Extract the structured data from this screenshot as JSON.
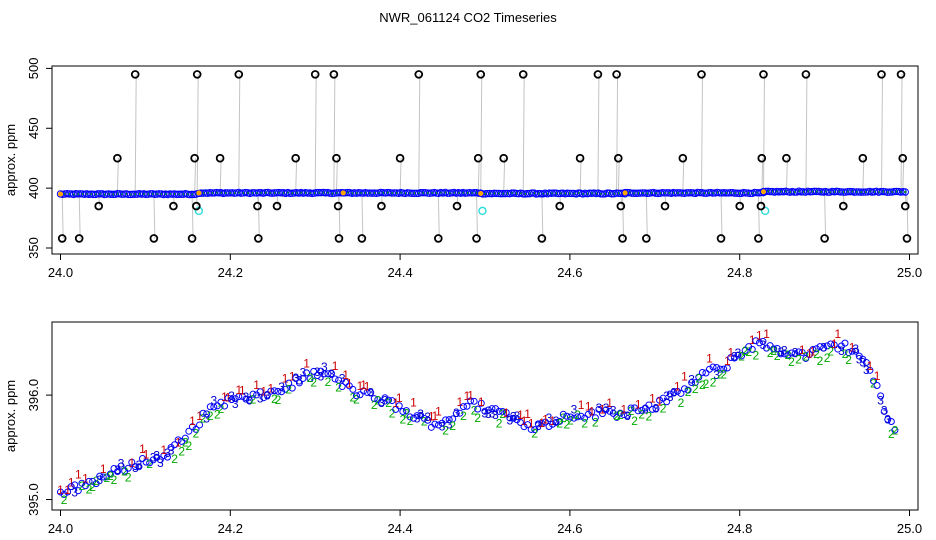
{
  "colors": {
    "spike_line": "#888888",
    "outlier_marker": "#000000",
    "spike_marker": "#000000",
    "baseline_circle": "#0000ff",
    "baseline_center": "#00aa00",
    "segment_start": "#ffa500",
    "cyan_marker": "#33dddd",
    "level_1": "#cc0000",
    "level_2": "#00aa00",
    "level_3": "#0000cc"
  },
  "chart_data": [
    {
      "type": "scatter",
      "title": "NWR_061124  CO2 Timeseries",
      "xlabel": "",
      "ylabel": "approx. ppm",
      "xlim": [
        23.99,
        25.01
      ],
      "ylim": [
        345,
        502
      ],
      "x_ticks": [
        "24.0",
        "24.2",
        "24.4",
        "24.6",
        "24.8",
        "25.0"
      ],
      "y_ticks": [
        "350",
        "400",
        "450",
        "500"
      ],
      "baseline": {
        "segments": [
          {
            "x_start": 24.0,
            "x_end": 24.16,
            "y": 395
          },
          {
            "x_start": 24.163,
            "x_end": 24.333,
            "y": 396
          },
          {
            "x_start": 24.333,
            "x_end": 24.495,
            "y": 396
          },
          {
            "x_start": 24.495,
            "x_end": 24.665,
            "y": 395.5
          },
          {
            "x_start": 24.665,
            "x_end": 24.828,
            "y": 396
          },
          {
            "x_start": 24.828,
            "x_end": 24.995,
            "y": 397
          }
        ]
      },
      "cyan_points": [
        {
          "x": 24.163,
          "y": 381
        },
        {
          "x": 24.497,
          "y": 381
        },
        {
          "x": 24.83,
          "y": 381
        }
      ],
      "spikes": [
        {
          "x": 24.002,
          "y": 358
        },
        {
          "x": 24.022,
          "y": 358
        },
        {
          "x": 24.045,
          "y": 385
        },
        {
          "x": 24.067,
          "y": 425
        },
        {
          "x": 24.088,
          "y": 495
        },
        {
          "x": 24.11,
          "y": 358
        },
        {
          "x": 24.133,
          "y": 385
        },
        {
          "x": 24.155,
          "y": 358
        },
        {
          "x": 24.158,
          "y": 425
        },
        {
          "x": 24.16,
          "y": 385
        },
        {
          "x": 24.161,
          "y": 495
        },
        {
          "x": 24.188,
          "y": 425
        },
        {
          "x": 24.21,
          "y": 495
        },
        {
          "x": 24.232,
          "y": 385
        },
        {
          "x": 24.255,
          "y": 385
        },
        {
          "x": 24.233,
          "y": 358
        },
        {
          "x": 24.277,
          "y": 425
        },
        {
          "x": 24.3,
          "y": 495
        },
        {
          "x": 24.322,
          "y": 495
        },
        {
          "x": 24.325,
          "y": 425
        },
        {
          "x": 24.327,
          "y": 385
        },
        {
          "x": 24.328,
          "y": 358
        },
        {
          "x": 24.355,
          "y": 358
        },
        {
          "x": 24.378,
          "y": 385
        },
        {
          "x": 24.4,
          "y": 425
        },
        {
          "x": 24.422,
          "y": 495
        },
        {
          "x": 24.445,
          "y": 358
        },
        {
          "x": 24.467,
          "y": 385
        },
        {
          "x": 24.49,
          "y": 358
        },
        {
          "x": 24.492,
          "y": 425
        },
        {
          "x": 24.495,
          "y": 495
        },
        {
          "x": 24.522,
          "y": 425
        },
        {
          "x": 24.545,
          "y": 495
        },
        {
          "x": 24.567,
          "y": 358
        },
        {
          "x": 24.588,
          "y": 385
        },
        {
          "x": 24.612,
          "y": 425
        },
        {
          "x": 24.633,
          "y": 495
        },
        {
          "x": 24.655,
          "y": 495
        },
        {
          "x": 24.657,
          "y": 425
        },
        {
          "x": 24.66,
          "y": 385
        },
        {
          "x": 24.662,
          "y": 358
        },
        {
          "x": 24.69,
          "y": 358
        },
        {
          "x": 24.712,
          "y": 385
        },
        {
          "x": 24.733,
          "y": 425
        },
        {
          "x": 24.755,
          "y": 495
        },
        {
          "x": 24.778,
          "y": 358
        },
        {
          "x": 24.8,
          "y": 385
        },
        {
          "x": 24.822,
          "y": 358
        },
        {
          "x": 24.825,
          "y": 385
        },
        {
          "x": 24.826,
          "y": 425
        },
        {
          "x": 24.828,
          "y": 495
        },
        {
          "x": 24.855,
          "y": 425
        },
        {
          "x": 24.878,
          "y": 495
        },
        {
          "x": 24.9,
          "y": 358
        },
        {
          "x": 24.922,
          "y": 385
        },
        {
          "x": 24.945,
          "y": 425
        },
        {
          "x": 24.967,
          "y": 495
        },
        {
          "x": 24.99,
          "y": 495
        },
        {
          "x": 24.992,
          "y": 425
        },
        {
          "x": 24.995,
          "y": 385
        },
        {
          "x": 24.997,
          "y": 358
        }
      ]
    },
    {
      "type": "scatter",
      "title": "",
      "xlabel": "",
      "ylabel": "approx. ppm",
      "xlim": [
        23.99,
        25.01
      ],
      "ylim": [
        394.9,
        396.7
      ],
      "x_ticks": [
        "24.0",
        "24.2",
        "24.4",
        "24.6",
        "24.8",
        "25.0"
      ],
      "y_ticks": [
        "395.0",
        "396.0"
      ],
      "marker_labels": [
        "1",
        "2",
        "3"
      ],
      "trend": [
        {
          "x": 24.0,
          "y": 395.05
        },
        {
          "x": 24.03,
          "y": 395.15
        },
        {
          "x": 24.06,
          "y": 395.25
        },
        {
          "x": 24.09,
          "y": 395.35
        },
        {
          "x": 24.12,
          "y": 395.4
        },
        {
          "x": 24.15,
          "y": 395.62
        },
        {
          "x": 24.18,
          "y": 395.9
        },
        {
          "x": 24.2,
          "y": 395.95
        },
        {
          "x": 24.23,
          "y": 395.98
        },
        {
          "x": 24.26,
          "y": 396.05
        },
        {
          "x": 24.29,
          "y": 396.18
        },
        {
          "x": 24.31,
          "y": 396.22
        },
        {
          "x": 24.33,
          "y": 396.12
        },
        {
          "x": 24.35,
          "y": 396.02
        },
        {
          "x": 24.37,
          "y": 395.98
        },
        {
          "x": 24.39,
          "y": 395.92
        },
        {
          "x": 24.41,
          "y": 395.82
        },
        {
          "x": 24.44,
          "y": 395.72
        },
        {
          "x": 24.46,
          "y": 395.78
        },
        {
          "x": 24.48,
          "y": 395.92
        },
        {
          "x": 24.5,
          "y": 395.88
        },
        {
          "x": 24.52,
          "y": 395.84
        },
        {
          "x": 24.54,
          "y": 395.74
        },
        {
          "x": 24.56,
          "y": 395.7
        },
        {
          "x": 24.58,
          "y": 395.74
        },
        {
          "x": 24.6,
          "y": 395.82
        },
        {
          "x": 24.62,
          "y": 395.8
        },
        {
          "x": 24.64,
          "y": 395.84
        },
        {
          "x": 24.66,
          "y": 395.82
        },
        {
          "x": 24.68,
          "y": 395.88
        },
        {
          "x": 24.7,
          "y": 395.9
        },
        {
          "x": 24.72,
          "y": 395.98
        },
        {
          "x": 24.74,
          "y": 396.08
        },
        {
          "x": 24.76,
          "y": 396.22
        },
        {
          "x": 24.78,
          "y": 396.25
        },
        {
          "x": 24.8,
          "y": 396.4
        },
        {
          "x": 24.82,
          "y": 396.5
        },
        {
          "x": 24.84,
          "y": 396.45
        },
        {
          "x": 24.86,
          "y": 396.4
        },
        {
          "x": 24.88,
          "y": 396.38
        },
        {
          "x": 24.9,
          "y": 396.45
        },
        {
          "x": 24.92,
          "y": 396.48
        },
        {
          "x": 24.94,
          "y": 396.4
        },
        {
          "x": 24.955,
          "y": 396.22
        },
        {
          "x": 24.965,
          "y": 395.98
        },
        {
          "x": 24.975,
          "y": 395.75
        },
        {
          "x": 24.985,
          "y": 395.68
        }
      ]
    }
  ]
}
